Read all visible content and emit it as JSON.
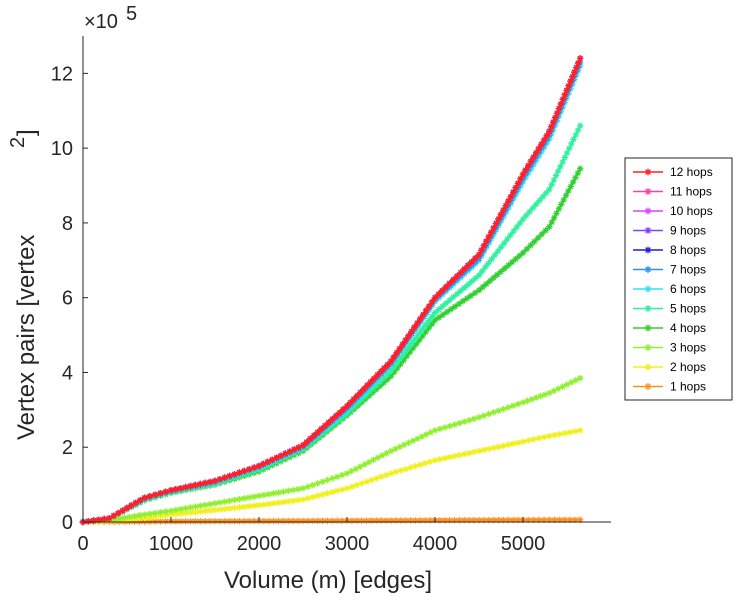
{
  "chart_data": {
    "type": "line",
    "xlabel": "Volume (m) [edges]",
    "ylabel": "Vertex pairs [vertex",
    "ylabel_superscript": "2",
    "ylabel_close": "]",
    "y_multiplier_base": "×10",
    "y_multiplier_exp": "5",
    "xlim": [
      0,
      6000
    ],
    "ylim": [
      0,
      1300000
    ],
    "x_ticks": [
      0,
      1000,
      2000,
      3000,
      4000,
      5000
    ],
    "x_tick_labels": [
      "0",
      "1000",
      "2000",
      "3000",
      "4000",
      "5000"
    ],
    "y_ticks": [
      0,
      200000,
      400000,
      600000,
      800000,
      1000000,
      1200000
    ],
    "y_tick_labels": [
      "0",
      "2",
      "4",
      "6",
      "8",
      "10",
      "12"
    ],
    "legend_position": "right",
    "x": [
      0,
      300,
      700,
      1000,
      1500,
      2000,
      2500,
      3000,
      3500,
      4000,
      4500,
      5000,
      5300,
      5650
    ],
    "series": [
      {
        "name": "12 hops",
        "color": "#ff2020",
        "values": [
          0,
          10000,
          65000,
          85000,
          110000,
          150000,
          205000,
          310000,
          430000,
          600000,
          715000,
          930000,
          1045000,
          1240000
        ]
      },
      {
        "name": "11 hops",
        "color": "#ff40a0",
        "values": [
          0,
          10000,
          65000,
          85000,
          110000,
          150000,
          205000,
          310000,
          430000,
          600000,
          715000,
          930000,
          1045000,
          1240000
        ]
      },
      {
        "name": "10 hops",
        "color": "#e040ff",
        "values": [
          0,
          10000,
          65000,
          85000,
          110000,
          150000,
          205000,
          310000,
          430000,
          600000,
          715000,
          930000,
          1045000,
          1240000
        ]
      },
      {
        "name": "9 hops",
        "color": "#8040ff",
        "values": [
          0,
          10000,
          65000,
          85000,
          110000,
          150000,
          205000,
          310000,
          430000,
          600000,
          715000,
          930000,
          1045000,
          1240000
        ]
      },
      {
        "name": "8 hops",
        "color": "#2020d0",
        "values": [
          0,
          10000,
          65000,
          85000,
          110000,
          150000,
          205000,
          310000,
          430000,
          600000,
          715000,
          930000,
          1045000,
          1240000
        ]
      },
      {
        "name": "7 hops",
        "color": "#3090f0",
        "values": [
          0,
          10000,
          63000,
          83000,
          108000,
          148000,
          202000,
          305000,
          425000,
          595000,
          705000,
          920000,
          1035000,
          1230000
        ]
      },
      {
        "name": "6 hops",
        "color": "#30e0f0",
        "values": [
          0,
          10000,
          62000,
          82000,
          106000,
          146000,
          200000,
          300000,
          420000,
          590000,
          700000,
          910000,
          1025000,
          1220000
        ]
      },
      {
        "name": "5 hops",
        "color": "#30f0a0",
        "values": [
          0,
          10000,
          60000,
          80000,
          102000,
          140000,
          195000,
          290000,
          405000,
          560000,
          660000,
          810000,
          890000,
          1060000
        ]
      },
      {
        "name": "4 hops",
        "color": "#30d030",
        "values": [
          0,
          10000,
          58000,
          78000,
          100000,
          135000,
          190000,
          285000,
          390000,
          540000,
          620000,
          720000,
          790000,
          945000
        ]
      },
      {
        "name": "3 hops",
        "color": "#90f030",
        "values": [
          0,
          5000,
          20000,
          30000,
          50000,
          70000,
          90000,
          130000,
          190000,
          245000,
          280000,
          320000,
          345000,
          385000
        ]
      },
      {
        "name": "2 hops",
        "color": "#f0f020",
        "values": [
          0,
          3000,
          10000,
          20000,
          32000,
          45000,
          60000,
          90000,
          130000,
          165000,
          190000,
          215000,
          230000,
          245000
        ]
      },
      {
        "name": "1 hops",
        "color": "#ff9020",
        "values": [
          0,
          500,
          1000,
          1500,
          2000,
          2500,
          3000,
          3500,
          4000,
          4500,
          5000,
          5500,
          5800,
          6000
        ]
      }
    ]
  }
}
